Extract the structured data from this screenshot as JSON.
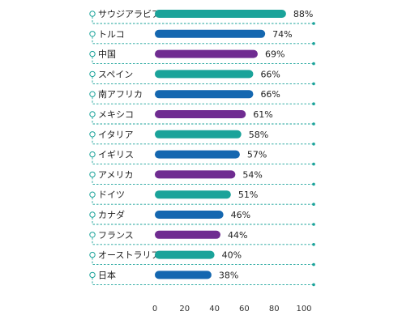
{
  "chart_data": {
    "type": "bar",
    "orientation": "horizontal",
    "categories": [
      "サウジアラビア",
      "トルコ",
      "中国",
      "スペイン",
      "南アフリカ",
      "メキシコ",
      "イタリア",
      "イギリス",
      "アメリカ",
      "ドイツ",
      "カナダ",
      "フランス",
      "オーストラリア",
      "日本"
    ],
    "values": [
      88,
      74,
      69,
      66,
      66,
      61,
      58,
      57,
      54,
      51,
      46,
      44,
      40,
      38
    ],
    "value_labels": [
      "88%",
      "74%",
      "69%",
      "66%",
      "66%",
      "61%",
      "58%",
      "57%",
      "54%",
      "51%",
      "46%",
      "44%",
      "40%",
      "38%"
    ],
    "bar_colors": [
      "#1aa39a",
      "#1467b0",
      "#6f2c91",
      "#1aa39a",
      "#1467b0",
      "#6f2c91",
      "#1aa39a",
      "#1467b0",
      "#6f2c91",
      "#1aa39a",
      "#1467b0",
      "#6f2c91",
      "#1aa39a",
      "#1467b0"
    ],
    "xlim": [
      0,
      100
    ],
    "xticks": [
      0,
      20,
      40,
      60,
      80,
      100
    ],
    "guide_color": "#1aa39a",
    "grid": false,
    "legend": "none"
  }
}
